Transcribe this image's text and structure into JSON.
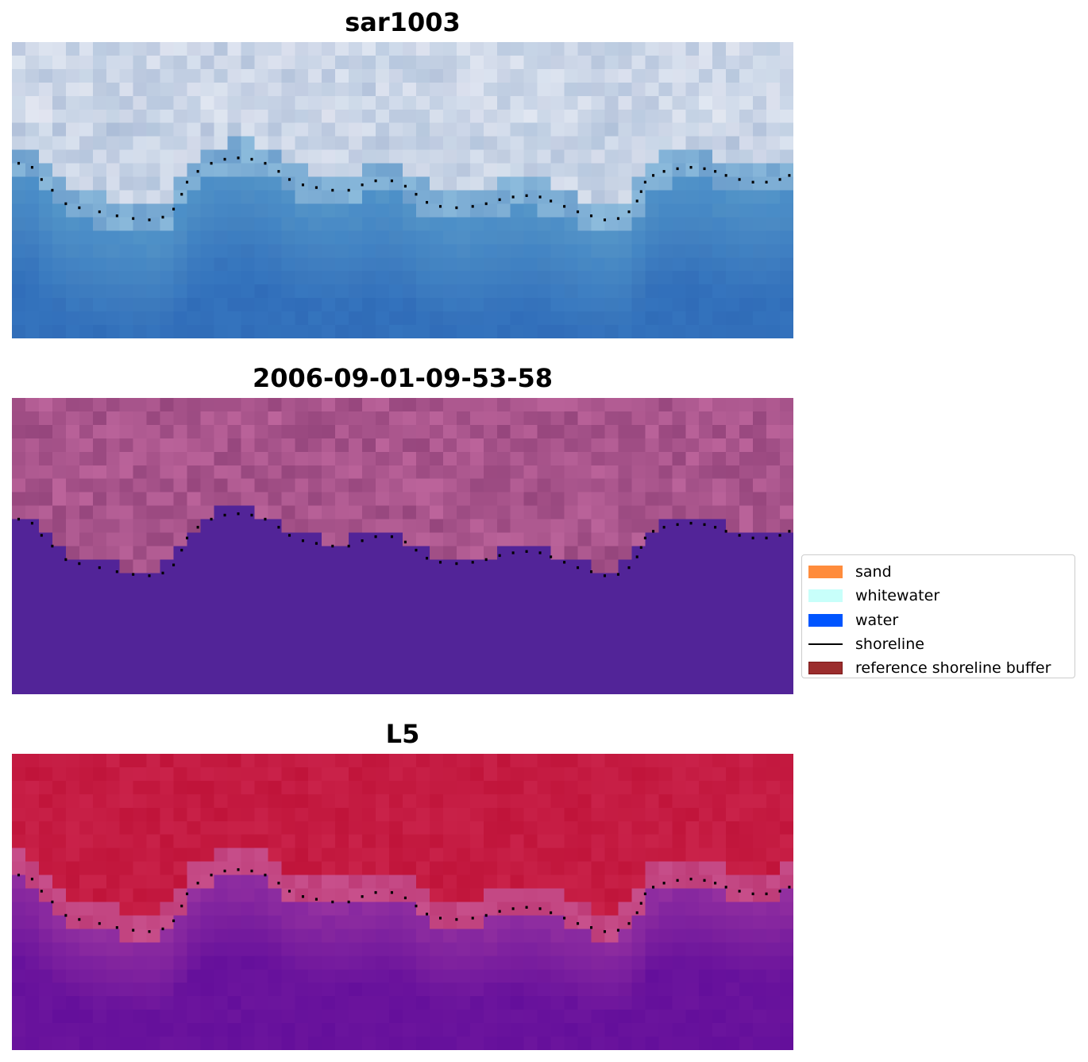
{
  "panels": [
    {
      "title": "sar1003",
      "type": "rgb-image"
    },
    {
      "title": "2006-09-01-09-53-58",
      "type": "classification"
    },
    {
      "title": "L5",
      "type": "mndwi"
    }
  ],
  "legend": {
    "placement": "right-center",
    "items": [
      {
        "label": "sand",
        "kind": "patch",
        "color": "#ff8c3c",
        "edge": "#ff8c3c"
      },
      {
        "label": "whitewater",
        "kind": "patch",
        "color": "#c8fffa",
        "edge": "#c8fffa"
      },
      {
        "label": "water",
        "kind": "patch",
        "color": "#0055ff",
        "edge": "#0055ff"
      },
      {
        "label": "shoreline",
        "kind": "line",
        "color": "#000000"
      },
      {
        "label": "reference shoreline buffer",
        "kind": "patch",
        "color": "#9b2d2d",
        "edge": "#7a1a1a"
      }
    ]
  },
  "chart_data": {
    "type": "heatmap",
    "grid": false,
    "axes_visible": false,
    "shoreline_points": [
      [
        0.5,
        9.0
      ],
      [
        1.5,
        9.3
      ],
      [
        2.2,
        10.2
      ],
      [
        3.0,
        11.0
      ],
      [
        4.0,
        12.0
      ],
      [
        5.0,
        12.3
      ],
      [
        6.5,
        12.6
      ],
      [
        7.8,
        12.9
      ],
      [
        9.0,
        13.1
      ],
      [
        10.2,
        13.2
      ],
      [
        11.2,
        13.0
      ],
      [
        12.0,
        12.4
      ],
      [
        12.6,
        11.3
      ],
      [
        13.0,
        10.4
      ],
      [
        13.8,
        9.6
      ],
      [
        14.8,
        9.0
      ],
      [
        15.8,
        8.7
      ],
      [
        16.8,
        8.6
      ],
      [
        17.8,
        8.7
      ],
      [
        18.8,
        9.0
      ],
      [
        19.8,
        9.6
      ],
      [
        20.6,
        10.2
      ],
      [
        21.6,
        10.6
      ],
      [
        22.6,
        10.8
      ],
      [
        23.8,
        11.0
      ],
      [
        25.0,
        11.0
      ],
      [
        26.0,
        10.6
      ],
      [
        27.0,
        10.3
      ],
      [
        28.2,
        10.3
      ],
      [
        29.2,
        10.7
      ],
      [
        30.0,
        11.3
      ],
      [
        30.8,
        11.9
      ],
      [
        31.8,
        12.2
      ],
      [
        33.0,
        12.3
      ],
      [
        34.2,
        12.2
      ],
      [
        35.2,
        12.0
      ],
      [
        36.2,
        11.7
      ],
      [
        37.2,
        11.5
      ],
      [
        38.2,
        11.4
      ],
      [
        39.2,
        11.5
      ],
      [
        40.0,
        11.8
      ],
      [
        41.0,
        12.2
      ],
      [
        42.0,
        12.6
      ],
      [
        43.0,
        12.9
      ],
      [
        44.0,
        13.2
      ],
      [
        45.0,
        13.1
      ],
      [
        45.8,
        12.6
      ],
      [
        46.4,
        11.8
      ],
      [
        46.7,
        11.1
      ],
      [
        47.0,
        10.4
      ],
      [
        47.6,
        9.9
      ],
      [
        48.4,
        9.6
      ],
      [
        49.4,
        9.4
      ],
      [
        50.4,
        9.3
      ],
      [
        51.4,
        9.4
      ],
      [
        52.2,
        9.6
      ],
      [
        53.0,
        9.9
      ],
      [
        54.0,
        10.2
      ],
      [
        55.0,
        10.4
      ],
      [
        56.0,
        10.4
      ],
      [
        57.0,
        10.2
      ],
      [
        57.7,
        9.9
      ]
    ]
  }
}
